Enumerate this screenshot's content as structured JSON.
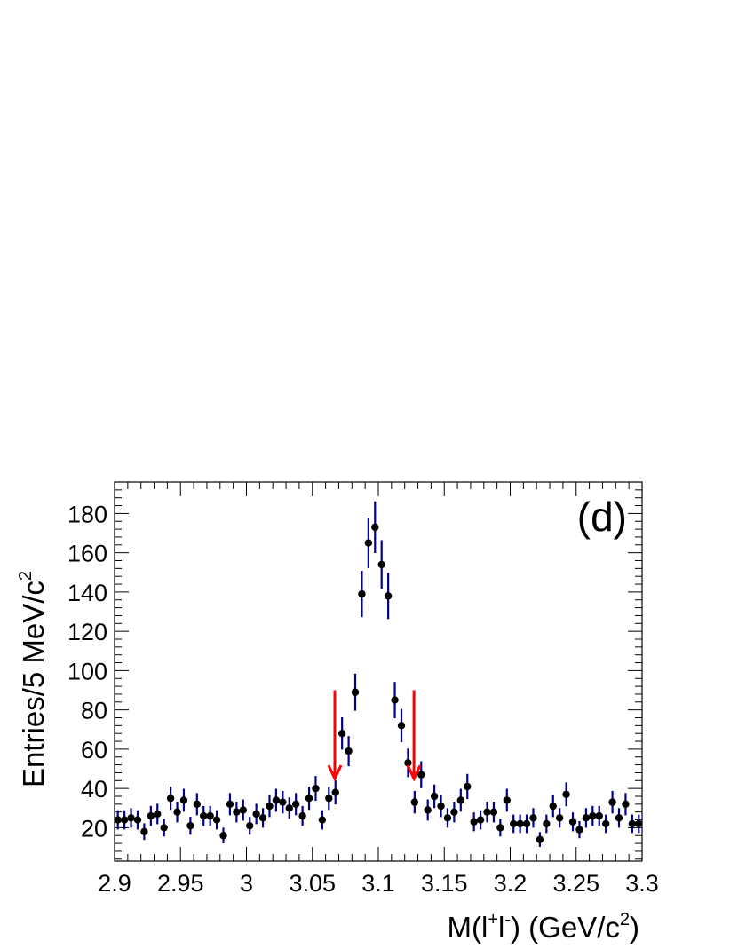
{
  "chart_data": {
    "type": "scatter",
    "panel_label": "(d)",
    "xlabel": {
      "main": "M(l",
      "sup1": "+",
      "mid": "l",
      "sup2": "-",
      "tail": ") (GeV/c",
      "sup3": "2",
      "end": ")"
    },
    "ylabel": {
      "main": "Entries/5 MeV/c",
      "sup": "2"
    },
    "xlim": [
      2.9,
      3.3
    ],
    "ylim": [
      3,
      196
    ],
    "x_ticks": [
      "2.9",
      "2.95",
      "3",
      "3.05",
      "3.1",
      "3.15",
      "3.2",
      "3.25",
      "3.3"
    ],
    "x_tick_values": [
      2.9,
      2.95,
      3.0,
      3.05,
      3.1,
      3.15,
      3.2,
      3.25,
      3.3
    ],
    "y_ticks": [
      "20",
      "40",
      "60",
      "80",
      "100",
      "120",
      "140",
      "160",
      "180"
    ],
    "y_tick_values": [
      20,
      40,
      60,
      80,
      100,
      120,
      140,
      160,
      180
    ],
    "grid": false,
    "colors": {
      "marker": "#000000",
      "error_bar": "#00008b",
      "arrow": "#ff0000"
    },
    "series": [
      {
        "x": [
          2.9025,
          2.9075,
          2.9125,
          2.9175,
          2.9225,
          2.9275,
          2.9325,
          2.9375,
          2.9425,
          2.9475,
          2.9525,
          2.9575,
          2.9625,
          2.9675,
          2.9725,
          2.9775,
          2.9825,
          2.9875,
          2.9925,
          2.9975,
          3.0025,
          3.0075,
          3.0125,
          3.0175,
          3.0225,
          3.0275,
          3.0325,
          3.0375,
          3.0425,
          3.0475,
          3.0525,
          3.0575,
          3.0625,
          3.0675,
          3.0725,
          3.0775,
          3.0825,
          3.0875,
          3.0925,
          3.0975,
          3.1025,
          3.1075,
          3.1125,
          3.1175,
          3.1225,
          3.1275,
          3.1325,
          3.1375,
          3.1425,
          3.1475,
          3.1525,
          3.1575,
          3.1625,
          3.1675,
          3.1725,
          3.1775,
          3.1825,
          3.1875,
          3.1925,
          3.1975,
          3.2025,
          3.2075,
          3.2125,
          3.2175,
          3.2225,
          3.2275,
          3.2325,
          3.2375,
          3.2425,
          3.2475,
          3.2525,
          3.2575,
          3.2625,
          3.2675,
          3.2725,
          3.2775,
          3.2825,
          3.2875,
          3.2925,
          3.2975
        ],
        "y": [
          24,
          24,
          25,
          24,
          18,
          26,
          27,
          20,
          35,
          28,
          34,
          21,
          32,
          26,
          26,
          24,
          16,
          32,
          28,
          29,
          21,
          27,
          25,
          31,
          34,
          33,
          30,
          32,
          26,
          35,
          40,
          24,
          35,
          38,
          68,
          59,
          89,
          139,
          165,
          173,
          154,
          138,
          85,
          72,
          53,
          33,
          47,
          29,
          36,
          31,
          25,
          28,
          34,
          41,
          23,
          24,
          28,
          28,
          20,
          34,
          22,
          22,
          22,
          25,
          14,
          22,
          31,
          25,
          37,
          23,
          19,
          25,
          26,
          26,
          22,
          33,
          25,
          32,
          22,
          22
        ]
      }
    ],
    "arrows": [
      {
        "x": 3.067,
        "y_from": 90,
        "y_to": 45
      },
      {
        "x": 3.127,
        "y_from": 90,
        "y_to": 45
      }
    ]
  }
}
